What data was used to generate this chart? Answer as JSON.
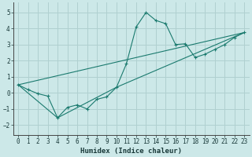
{
  "xlabel": "Humidex (Indice chaleur)",
  "background_color": "#cce8e8",
  "grid_color": "#b0d0d0",
  "line_color": "#1a7a6e",
  "xlim": [
    -0.5,
    23.5
  ],
  "ylim": [
    -2.6,
    5.6
  ],
  "xticks": [
    0,
    1,
    2,
    3,
    4,
    5,
    6,
    7,
    8,
    9,
    10,
    11,
    12,
    13,
    14,
    15,
    16,
    17,
    18,
    19,
    20,
    21,
    22,
    23
  ],
  "yticks": [
    -2,
    -1,
    0,
    1,
    2,
    3,
    4,
    5
  ],
  "series1_x": [
    0,
    1,
    2,
    3,
    4,
    5,
    6,
    7,
    8,
    9,
    10,
    11,
    12,
    13,
    14,
    15,
    16,
    17,
    18,
    19,
    20,
    21,
    22,
    23
  ],
  "series1_y": [
    0.5,
    0.2,
    -0.05,
    -0.2,
    -1.55,
    -0.9,
    -0.75,
    -1.0,
    -0.4,
    -0.25,
    0.35,
    1.8,
    4.1,
    5.0,
    4.5,
    4.3,
    3.0,
    3.05,
    2.2,
    2.4,
    2.7,
    3.0,
    3.45,
    3.75
  ],
  "series2_x": [
    0,
    23
  ],
  "series2_y": [
    0.5,
    3.75
  ],
  "series3_x": [
    0,
    4,
    10,
    23
  ],
  "series3_y": [
    0.5,
    -1.55,
    0.35,
    3.75
  ]
}
